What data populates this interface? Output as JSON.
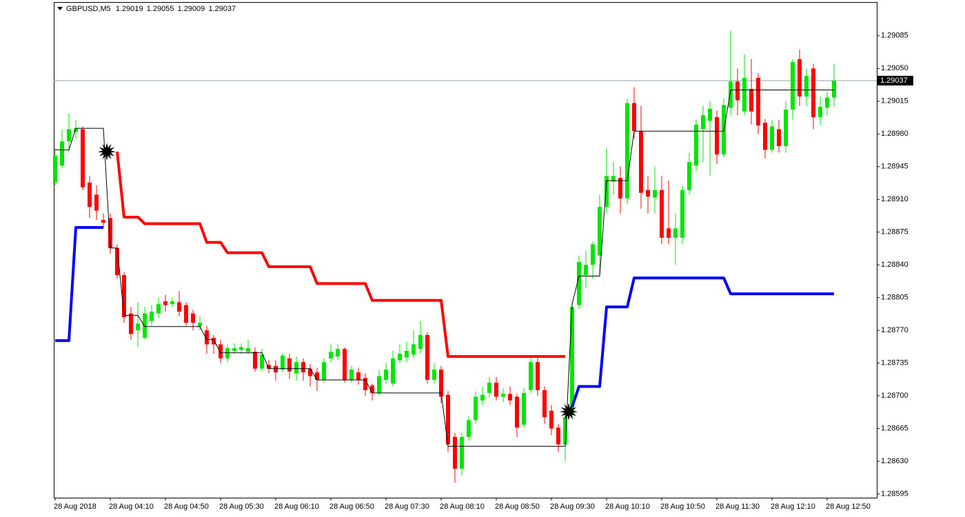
{
  "chart_data": {
    "type": "candlestick",
    "title": "GBPUSD,M5",
    "categories": [
      "28 Aug 2018",
      null,
      null,
      null,
      null,
      null,
      null,
      null,
      "28 Aug 04:10",
      null,
      null,
      null,
      null,
      null,
      null,
      null,
      "28 Aug 04:50",
      null,
      null,
      null,
      null,
      null,
      null,
      null,
      "28 Aug 05:30",
      null,
      null,
      null,
      null,
      null,
      null,
      null,
      "28 Aug 06:10",
      null,
      null,
      null,
      null,
      null,
      null,
      null,
      "28 Aug 06:50",
      null,
      null,
      null,
      null,
      null,
      null,
      null,
      "28 Aug 07:30",
      null,
      null,
      null,
      null,
      null,
      null,
      null,
      "28 Aug 08:10",
      null,
      null,
      null,
      null,
      null,
      null,
      null,
      "28 Aug 08:50",
      null,
      null,
      null,
      null,
      null,
      null,
      null,
      "28 Aug 09:30",
      null,
      null,
      null,
      null,
      null,
      null,
      null,
      "28 Aug 10:10",
      null,
      null,
      null,
      null,
      null,
      null,
      null,
      "28 Aug 10:50",
      null,
      null,
      null,
      null,
      null,
      null,
      null,
      "28 Aug 11:30",
      null,
      null,
      null,
      null,
      null,
      null,
      null,
      "28 Aug 12:10",
      null,
      null,
      null,
      null,
      null,
      null,
      null,
      "28 Aug 12:50",
      null
    ],
    "open": [
      1.28928,
      1.28946,
      1.28972,
      1.28982,
      1.28985,
      1.28928,
      1.28915,
      1.28888,
      1.2889,
      1.28858,
      1.28829,
      1.28788,
      1.2877,
      1.28762,
      1.2878,
      1.28788,
      1.28801,
      1.28798,
      1.288,
      1.28797,
      1.28788,
      1.28774,
      1.2877,
      1.28762,
      1.28755,
      1.2874,
      1.28748,
      1.28749,
      1.28747,
      1.28747,
      1.28729,
      1.28733,
      1.28732,
      1.28728,
      1.2874,
      1.28724,
      1.28736,
      1.28729,
      1.28725,
      1.28717,
      1.2874,
      1.28742,
      1.2875,
      1.28717,
      1.28725,
      1.28719,
      1.28711,
      1.28703,
      1.28717,
      1.28713,
      1.28738,
      1.28741,
      1.28744,
      1.2875,
      1.28765,
      1.28717,
      1.28728,
      1.28701,
      1.28656,
      1.28622,
      1.28656,
      1.28674,
      1.28695,
      1.28703,
      1.28714,
      1.28699,
      1.28702,
      1.28699,
      1.28669,
      1.28706,
      1.28736,
      1.28706,
      1.28684,
      1.28666,
      1.28648,
      1.2868,
      1.28797,
      1.28829,
      1.2884,
      1.2885,
      1.28902,
      1.28929,
      1.28933,
      1.28911,
      1.29013,
      1.28983,
      1.2892,
      1.28912,
      1.2892,
      1.28879,
      1.28869,
      1.28869,
      1.2892,
      1.28946,
      1.28985,
      1.28994,
      1.28998,
      1.28958,
      1.29008,
      1.29036,
      1.29004,
      1.29028,
      1.2904,
      1.28992,
      1.28963,
      1.28985,
      1.28967,
      1.29006,
      1.2906,
      1.2902,
      1.2905,
      1.28998,
      1.29008,
      1.29019
    ],
    "high": [
      1.28965,
      1.28985,
      1.29002,
      1.28995,
      1.28988,
      1.28935,
      1.28925,
      1.28895,
      1.28895,
      1.28862,
      1.28832,
      1.28795,
      1.288,
      1.28795,
      1.28797,
      1.28805,
      1.28808,
      1.28805,
      1.28812,
      1.288,
      1.28792,
      1.28785,
      1.28775,
      1.28765,
      1.2876,
      1.28755,
      1.28756,
      1.28756,
      1.2876,
      1.28752,
      1.2875,
      1.28738,
      1.28738,
      1.28746,
      1.28745,
      1.28742,
      1.2874,
      1.28734,
      1.2873,
      1.2874,
      1.28755,
      1.28755,
      1.28752,
      1.28732,
      1.2873,
      1.28724,
      1.28713,
      1.28728,
      1.28735,
      1.28748,
      1.28755,
      1.28758,
      1.2877,
      1.2878,
      1.28768,
      1.28735,
      1.28732,
      1.28705,
      1.2866,
      1.2866,
      1.28678,
      1.28705,
      1.2871,
      1.2872,
      1.2872,
      1.28708,
      1.2871,
      1.28702,
      1.28708,
      1.28742,
      1.28742,
      1.2871,
      1.2869,
      1.2867,
      1.28685,
      1.288,
      1.2885,
      1.28855,
      1.28865,
      1.28915,
      1.28965,
      1.2895,
      1.28945,
      1.29018,
      1.2903,
      1.2901,
      1.28935,
      1.28945,
      1.28935,
      1.2893,
      1.28895,
      1.28925,
      1.2896,
      1.28995,
      1.2901,
      1.29015,
      1.29005,
      1.29018,
      1.2909,
      1.2905,
      1.29065,
      1.2906,
      1.29045,
      1.28996,
      1.28995,
      1.28995,
      1.29015,
      1.2906,
      1.2907,
      1.2905,
      1.29055,
      1.2902,
      1.29025,
      1.29055
    ],
    "low": [
      1.28925,
      1.28943,
      1.2896,
      1.28975,
      1.2892,
      1.2889,
      1.28888,
      1.2888,
      1.28852,
      1.28825,
      1.28778,
      1.2876,
      1.28752,
      1.2876,
      1.28775,
      1.28783,
      1.2879,
      1.28795,
      1.28785,
      1.28775,
      1.2877,
      1.2877,
      1.28745,
      1.28745,
      1.28735,
      1.28736,
      1.28745,
      1.28745,
      1.28744,
      1.28726,
      1.28726,
      1.28724,
      1.28716,
      1.28725,
      1.28718,
      1.28716,
      1.28716,
      1.2871,
      1.28705,
      1.28714,
      1.28736,
      1.28738,
      1.28714,
      1.28714,
      1.28712,
      1.287,
      1.28695,
      1.287,
      1.28713,
      1.2871,
      1.28735,
      1.28736,
      1.2874,
      1.28745,
      1.28713,
      1.28713,
      1.28692,
      1.2864,
      1.28607,
      1.28615,
      1.28652,
      1.2867,
      1.2869,
      1.28698,
      1.28695,
      1.28693,
      1.2869,
      1.28656,
      1.28666,
      1.28703,
      1.287,
      1.2867,
      1.28658,
      1.2864,
      1.2863,
      1.28676,
      1.28793,
      1.28815,
      1.28825,
      1.2883,
      1.28895,
      1.28915,
      1.28895,
      1.28905,
      1.28975,
      1.289,
      1.28895,
      1.28895,
      1.28862,
      1.28862,
      1.2884,
      1.28862,
      1.28915,
      1.2894,
      1.2895,
      1.28935,
      1.28948,
      1.28955,
      1.29,
      1.29,
      1.29,
      1.2899,
      1.2898,
      1.28954,
      1.2896,
      1.2896,
      1.2896,
      1.28995,
      1.2901,
      1.2901,
      1.28985,
      1.2899,
      1.29,
      1.29009
    ],
    "close": [
      1.28957,
      1.28972,
      1.28985,
      1.28986,
      1.28923,
      1.28902,
      1.28898,
      1.28885,
      1.28858,
      1.28829,
      1.28784,
      1.28766,
      1.28777,
      1.28788,
      1.2879,
      1.28798,
      1.28797,
      1.28801,
      1.2879,
      1.28778,
      1.28778,
      1.28778,
      1.28755,
      1.28755,
      1.2874,
      1.28751,
      1.28751,
      1.28752,
      1.28751,
      1.28729,
      1.28744,
      1.28729,
      1.28725,
      1.28743,
      1.28726,
      1.28736,
      1.28725,
      1.28721,
      1.28717,
      1.28736,
      1.28747,
      1.2875,
      1.28717,
      1.28728,
      1.28717,
      1.28706,
      1.28703,
      1.28721,
      1.28728,
      1.2874,
      1.28745,
      1.28748,
      1.28755,
      1.28765,
      1.28717,
      1.28728,
      1.28699,
      1.28648,
      1.28622,
      1.28656,
      1.28674,
      1.28699,
      1.28701,
      1.28714,
      1.28699,
      1.28702,
      1.28695,
      1.28666,
      1.28703,
      1.28736,
      1.28706,
      1.28677,
      1.28665,
      1.28648,
      1.28677,
      1.28795,
      1.28843,
      1.2884,
      1.28862,
      1.28902,
      1.28935,
      1.28935,
      1.28911,
      1.29013,
      1.28983,
      1.28917,
      1.28913,
      1.2892,
      1.28869,
      1.28869,
      1.28879,
      1.2892,
      1.2895,
      1.2899,
      1.29,
      1.29007,
      1.28958,
      1.29011,
      1.29036,
      1.29016,
      1.2904,
      1.29004,
      1.28989,
      1.28963,
      1.28988,
      1.28967,
      1.29006,
      1.29057,
      1.2902,
      1.29042,
      1.28998,
      1.29009,
      1.29019,
      1.29037
    ],
    "up_color": "#00e600",
    "down_color": "#ff0000",
    "series": [
      {
        "color": "#ff0000",
        "width": 4,
        "values": [
          null,
          null,
          null,
          null,
          null,
          null,
          null,
          null,
          null,
          1.28961,
          1.28891,
          1.28891,
          1.28891,
          1.28884,
          1.28884,
          1.28884,
          1.28884,
          1.28884,
          1.28884,
          1.28884,
          1.28884,
          1.28884,
          1.28864,
          1.28864,
          1.28864,
          1.28853,
          1.28853,
          1.28853,
          1.28853,
          1.28853,
          1.28853,
          1.28838,
          1.28838,
          1.28838,
          1.28838,
          1.28838,
          1.28838,
          1.28838,
          1.2882,
          1.2882,
          1.2882,
          1.2882,
          1.2882,
          1.2882,
          1.2882,
          1.2882,
          1.28802,
          1.28802,
          1.28802,
          1.28802,
          1.28802,
          1.28802,
          1.28802,
          1.28802,
          1.28802,
          1.28802,
          1.28802,
          1.28742,
          1.28742,
          1.28742,
          1.28742,
          1.28742,
          1.28742,
          1.28742,
          1.28742,
          1.28742,
          1.28742,
          1.28742,
          1.28742,
          1.28742,
          1.28742,
          1.28742,
          1.28742,
          1.28742,
          1.28742,
          null,
          null,
          null,
          null,
          null,
          null,
          null,
          null,
          null,
          null,
          null,
          null,
          null,
          null,
          null,
          null,
          null,
          null,
          null,
          null,
          null,
          null,
          null,
          null,
          null,
          null,
          null,
          null,
          null,
          null,
          null,
          null,
          null,
          null,
          null,
          null,
          null,
          null,
          null
        ]
      },
      {
        "color": "#0000ff",
        "width": 4,
        "values": [
          1.28759,
          1.28759,
          1.28759,
          1.2888,
          1.2888,
          1.2888,
          1.2888,
          1.2888,
          null,
          null,
          null,
          null,
          null,
          null,
          null,
          null,
          null,
          null,
          null,
          null,
          null,
          null,
          null,
          null,
          null,
          null,
          null,
          null,
          null,
          null,
          null,
          null,
          null,
          null,
          null,
          null,
          null,
          null,
          null,
          null,
          null,
          null,
          null,
          null,
          null,
          null,
          null,
          null,
          null,
          null,
          null,
          null,
          null,
          null,
          null,
          null,
          null,
          null,
          null,
          null,
          null,
          null,
          null,
          null,
          null,
          null,
          null,
          null,
          null,
          null,
          null,
          null,
          null,
          null,
          null,
          1.28688,
          1.2871,
          1.2871,
          1.2871,
          1.2871,
          1.28795,
          1.28795,
          1.28795,
          1.28795,
          1.28826,
          1.28826,
          1.28826,
          1.28826,
          1.28826,
          1.28826,
          1.28826,
          1.28826,
          1.28826,
          1.28826,
          1.28826,
          1.28826,
          1.28826,
          1.28826,
          1.28809,
          1.28809,
          1.28809,
          1.28809,
          1.28809,
          1.28809,
          1.28809,
          1.28809,
          1.28809,
          1.28809,
          1.28809,
          1.28809,
          1.28809,
          1.28809,
          1.28809,
          1.28809
        ]
      },
      {
        "color": "#000000",
        "width": 1,
        "values": [
          1.28963,
          1.28963,
          1.28963,
          1.28986,
          1.28986,
          1.28986,
          1.28986,
          1.28986,
          1.28858,
          1.28858,
          1.28786,
          1.28786,
          1.28786,
          1.28774,
          1.28774,
          1.28774,
          1.28774,
          1.28774,
          1.28774,
          1.28774,
          1.28774,
          1.28774,
          1.2876,
          1.2876,
          1.28746,
          1.28746,
          1.28746,
          1.28746,
          1.28746,
          1.28746,
          1.28746,
          1.28729,
          1.28729,
          1.28729,
          1.28729,
          1.28729,
          1.28729,
          1.28729,
          1.28717,
          1.28717,
          1.28717,
          1.28717,
          1.28717,
          1.28717,
          1.28717,
          1.28717,
          1.28703,
          1.28703,
          1.28703,
          1.28703,
          1.28703,
          1.28703,
          1.28703,
          1.28703,
          1.28703,
          1.28703,
          1.28703,
          1.28646,
          1.28646,
          1.28646,
          1.28646,
          1.28646,
          1.28646,
          1.28646,
          1.28646,
          1.28646,
          1.28646,
          1.28646,
          1.28646,
          1.28646,
          1.28646,
          1.28646,
          1.28646,
          1.28646,
          1.28646,
          1.28798,
          1.28828,
          1.28828,
          1.28828,
          1.28828,
          1.2893,
          1.2893,
          1.2893,
          1.2893,
          1.28983,
          1.28983,
          1.28983,
          1.28983,
          1.28983,
          1.28983,
          1.28983,
          1.28983,
          1.28983,
          1.28983,
          1.28983,
          1.28983,
          1.28983,
          1.28983,
          1.29027,
          1.29027,
          1.29027,
          1.29027,
          1.29027,
          1.29027,
          1.29027,
          1.29027,
          1.29027,
          1.29027,
          1.29027,
          1.29027,
          1.29027,
          1.29027,
          1.29027,
          1.29027
        ]
      },
      {
        "color": "#000000",
        "marker": "star",
        "values": [
          null,
          null,
          null,
          null,
          null,
          null,
          null,
          1.28961,
          null,
          null,
          null,
          null,
          null,
          null,
          null,
          null,
          null,
          null,
          null,
          null,
          null,
          null,
          null,
          null,
          null,
          null,
          null,
          null,
          null,
          null,
          null,
          null,
          null,
          null,
          null,
          null,
          null,
          null,
          null,
          null,
          null,
          null,
          null,
          null,
          null,
          null,
          null,
          null,
          null,
          null,
          null,
          null,
          null,
          null,
          null,
          null,
          null,
          null,
          null,
          null,
          null,
          null,
          null,
          null,
          null,
          null,
          null,
          null,
          null,
          null,
          null,
          null,
          null,
          null,
          1.28683,
          null,
          null,
          null,
          null,
          null,
          null,
          null,
          null,
          null,
          null,
          null,
          null,
          null,
          null,
          null,
          null,
          null,
          null,
          null,
          null,
          null,
          null,
          null,
          null,
          null,
          null,
          null,
          null,
          null,
          null,
          null,
          null,
          null,
          null,
          null,
          null,
          null,
          null,
          null
        ]
      }
    ],
    "ylim": [
      1.28591,
      1.29121
    ],
    "yticks": [
      1.28595,
      {
        "value": 1.2863,
        "label": "1.28630"
      },
      1.28665,
      {
        "value": 1.287,
        "label": "1.28700"
      },
      1.28735,
      {
        "value": 1.2877,
        "label": "1.28770"
      },
      1.28805,
      {
        "value": 1.2884,
        "label": "1.28840"
      },
      1.28875,
      {
        "value": 1.2891,
        "label": "1.28910"
      },
      1.28945,
      {
        "value": 1.2898,
        "label": "1.28980"
      },
      1.29015,
      {
        "value": 1.2905,
        "label": "1.29050"
      },
      1.29085
    ],
    "grid": false
  }
}
